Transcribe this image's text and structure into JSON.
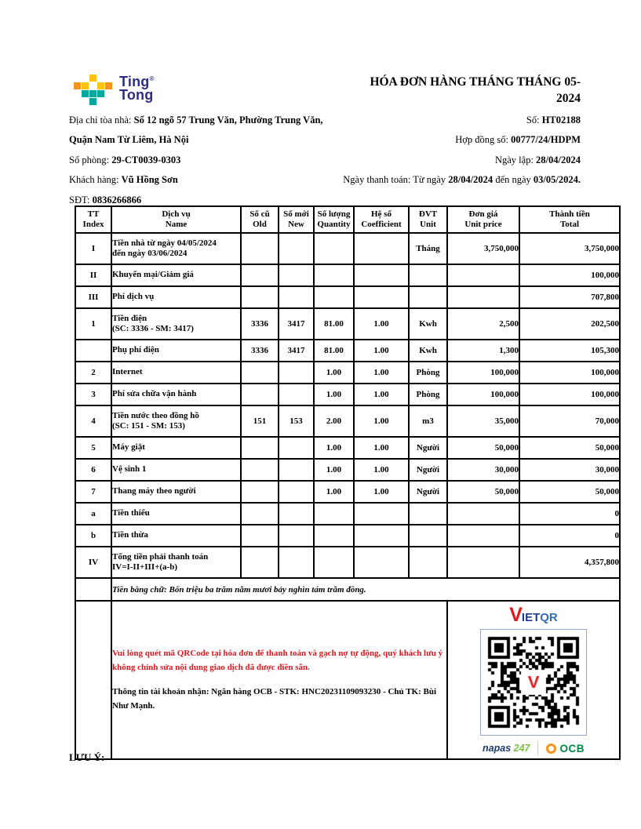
{
  "page": {
    "brand": {
      "line1": "Ting",
      "reg": "®",
      "line2": "Tong"
    },
    "title": {
      "line1": "HÓA ĐƠN HÀNG THÁNG THÁNG 05-",
      "line2": "2024"
    }
  },
  "info_left": [
    {
      "parts": [
        {
          "t": "Địa chỉ tòa nhà: "
        },
        {
          "t": "Số 12 ngõ 57 Trung Văn, Phường Trung Văn,",
          "b": 1
        }
      ]
    },
    {
      "parts": [
        {
          "t": "Quận Nam Từ Liêm, Hà Nội",
          "b": 1
        }
      ]
    },
    {
      "parts": [
        {
          "t": "Số phòng: "
        },
        {
          "t": "29-CT0039-0303",
          "b": 1
        }
      ]
    },
    {
      "parts": [
        {
          "t": "Khách hàng: "
        },
        {
          "t": "Vũ Hồng Sơn",
          "b": 1
        }
      ]
    },
    {
      "parts": [
        {
          "t": "SĐT: "
        },
        {
          "t": "0836266866",
          "b": 1
        }
      ]
    }
  ],
  "info_right": [
    {
      "parts": [
        {
          "t": "Số: "
        },
        {
          "t": "HT02188",
          "b": 1
        }
      ]
    },
    {
      "parts": [
        {
          "t": "Hợp đồng số: "
        },
        {
          "t": "00777/24/HDPM",
          "b": 1
        }
      ]
    },
    {
      "parts": [
        {
          "t": "Ngày lập: "
        },
        {
          "t": "28/04/2024",
          "b": 1
        }
      ]
    },
    {
      "parts": [
        {
          "t": "Ngày thanh toán: Từ ngày "
        },
        {
          "t": "28/04/2024",
          "b": 1
        },
        {
          "t": " đến ngày "
        },
        {
          "t": "03/05/2024.",
          "b": 1
        }
      ]
    }
  ],
  "table": {
    "header": [
      {
        "vi": "TT",
        "en": "Index"
      },
      {
        "vi": "Dịch vụ",
        "en": "Name"
      },
      {
        "vi": "Số cũ",
        "en": "Old"
      },
      {
        "vi": "Số mới",
        "en": "New"
      },
      {
        "vi": "Số lượng",
        "en": "Quantity"
      },
      {
        "vi": "Hệ số",
        "en": "Coefficient"
      },
      {
        "vi": "ĐVT",
        "en": "Unit"
      },
      {
        "vi": "Đơn giá",
        "en": "Unit price"
      },
      {
        "vi": "Thành tiền",
        "en": "Total"
      }
    ],
    "rows": [
      [
        "I",
        [
          "Tiền nhà từ ngày 04/05/2024",
          "đến ngày 03/06/2024"
        ],
        "",
        "",
        "",
        "",
        "Tháng",
        "3,750,000",
        "3,750,000"
      ],
      [
        "II",
        "Khuyến mại/Giảm giá",
        "",
        "",
        "",
        "",
        "",
        "",
        "100,000"
      ],
      [
        "III",
        "Phí dịch vụ",
        "",
        "",
        "",
        "",
        "",
        "",
        "707,800"
      ],
      [
        "1",
        [
          "Tiền điện",
          "(SC: 3336 - SM: 3417)"
        ],
        "3336",
        "3417",
        "81.00",
        "1.00",
        "Kwh",
        "2,500",
        "202,500"
      ],
      [
        "",
        "Phụ phí điện",
        "3336",
        "3417",
        "81.00",
        "1.00",
        "Kwh",
        "1,300",
        "105,300"
      ],
      [
        "2",
        "Internet",
        "",
        "",
        "1.00",
        "1.00",
        "Phòng",
        "100,000",
        "100,000"
      ],
      [
        "3",
        "Phí sửa chữa vận hành",
        "",
        "",
        "1.00",
        "1.00",
        "Phòng",
        "100,000",
        "100,000"
      ],
      [
        "4",
        [
          "Tiền nước theo đồng hồ",
          "(SC: 151 - SM: 153)"
        ],
        "151",
        "153",
        "2.00",
        "1.00",
        "m3",
        "35,000",
        "70,000"
      ],
      [
        "5",
        "Máy giặt",
        "",
        "",
        "1.00",
        "1.00",
        "Người",
        "50,000",
        "50,000"
      ],
      [
        "6",
        "Vệ sinh 1",
        "",
        "",
        "1.00",
        "1.00",
        "Người",
        "30,000",
        "30,000"
      ],
      [
        "7",
        "Thang máy theo người",
        "",
        "",
        "1.00",
        "1.00",
        "Người",
        "50,000",
        "50,000"
      ],
      [
        "a",
        "Tiền thiếu",
        "",
        "",
        "",
        "",
        "",
        "",
        "0"
      ],
      [
        "b",
        "Tiền thừa",
        "",
        "",
        "",
        "",
        "",
        "",
        "0"
      ],
      [
        "IV",
        [
          "Tổng tiền phải thanh toán",
          "IV=I-II+III+(a-b)"
        ],
        "",
        "",
        "",
        "",
        "",
        "",
        "4,357,800"
      ]
    ],
    "amount_in_words": {
      "label": "Tiền bằng chữ: ",
      "value": "Bốn triệu ba trăm năm mươi bảy nghìn tám trăm đồng."
    }
  },
  "payment": {
    "note": "Vui lòng quét mã QRCode tại hóa đơn để thanh toán và gạch nợ tự động, quý khách lưu ý không chỉnh sửa nội dung giao dịch đã được điền sẵn.",
    "account_parts": [
      {
        "t": "Thông tin tài khoản nhận: Ngân hàng OCB - STK: "
      },
      {
        "t": "HNC20231109093230",
        "b": 1
      },
      {
        "t": " - Chủ TK: "
      },
      {
        "t": "Bùi Như Mạnh",
        "b": 1
      },
      {
        "t": "."
      }
    ],
    "vietqr": {
      "v": "V",
      "iet": "IET",
      "qr": "QR"
    },
    "napas": {
      "name": "napas ",
      "suffix": "247"
    },
    "ocb": "OCB"
  },
  "footer": {
    "note": "LƯU Ý:"
  },
  "colors": {
    "red": "#e0181e",
    "navy": "#2d2e83",
    "teal": "#00a79d",
    "yellow": "#ffc20e",
    "orange": "#f7941d",
    "vietqr-navy": "#1f3a93",
    "vietqr-blue": "#2f6db5",
    "napas-navy": "#1b3a6b",
    "napas-green": "#7ac143",
    "ocb-green": "#008848"
  }
}
